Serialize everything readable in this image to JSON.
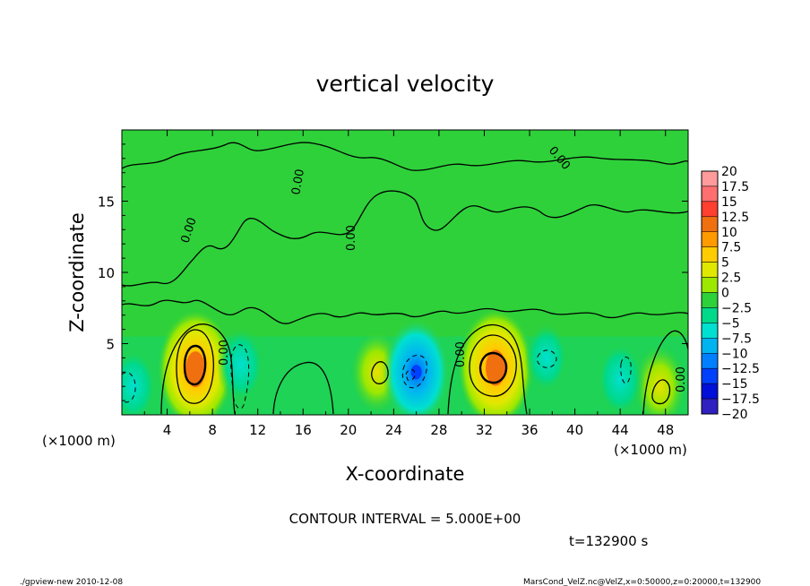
{
  "chart_data": {
    "type": "heatmap",
    "title": "vertical velocity",
    "xlabel": "X-coordinate",
    "ylabel": "Z-coordinate",
    "x_unit": "(×1000 m)",
    "y_unit": "(×1000 m)",
    "xlim": [
      0,
      50
    ],
    "ylim": [
      0,
      20
    ],
    "x_ticks": [
      "4",
      "8",
      "12",
      "16",
      "20",
      "24",
      "28",
      "32",
      "36",
      "40",
      "44",
      "48"
    ],
    "x_tick_values": [
      4,
      8,
      12,
      16,
      20,
      24,
      28,
      32,
      36,
      40,
      44,
      48
    ],
    "y_ticks": [
      "5",
      "10",
      "15"
    ],
    "y_tick_values": [
      5,
      10,
      15
    ],
    "contour_interval": "CONTOUR INTERVAL = 5.000E+00",
    "contour_labels": [
      "0.00"
    ],
    "time_label": "t=132900 s",
    "colorbar": {
      "levels": [
        "20",
        "17.5",
        "15",
        "12.5",
        "10",
        "7.5",
        "5",
        "2.5",
        "0",
        "-2.5",
        "-5",
        "-7.5",
        "-10",
        "-12.5",
        "-15",
        "-17.5",
        "-20"
      ],
      "colors": [
        "#ff9b9b",
        "#ff6f6f",
        "#ff3f2f",
        "#f07010",
        "#ff9a00",
        "#ffcc00",
        "#e0e800",
        "#9ce800",
        "#2ed13a",
        "#00d88a",
        "#00e0d0",
        "#00b4f0",
        "#0080ff",
        "#0040ff",
        "#0010d8",
        "#3020c0",
        "#7000d0"
      ]
    },
    "features": [
      {
        "x": 6.5,
        "z": 3.2,
        "value": 12,
        "kind": "updraft"
      },
      {
        "x": 33,
        "z": 3.3,
        "value": 12,
        "kind": "updraft"
      },
      {
        "x": 22.5,
        "z": 3.0,
        "value": 6,
        "kind": "updraft"
      },
      {
        "x": 47.5,
        "z": 2.0,
        "value": 6,
        "kind": "updraft"
      },
      {
        "x": 26,
        "z": 3.0,
        "value": -10,
        "kind": "downdraft"
      },
      {
        "x": 10.5,
        "z": 3.5,
        "value": -5,
        "kind": "downdraft"
      },
      {
        "x": 1,
        "z": 2.0,
        "value": -5,
        "kind": "downdraft"
      },
      {
        "x": 37.5,
        "z": 4.0,
        "value": -4,
        "kind": "downdraft"
      },
      {
        "x": 44,
        "z": 2.5,
        "value": -5,
        "kind": "downdraft"
      }
    ]
  },
  "footer": {
    "left": "./gpview-new  2010-12-08",
    "right": "MarsCond_VelZ.nc@VelZ,x=0:50000,z=0:20000,t=132900"
  }
}
